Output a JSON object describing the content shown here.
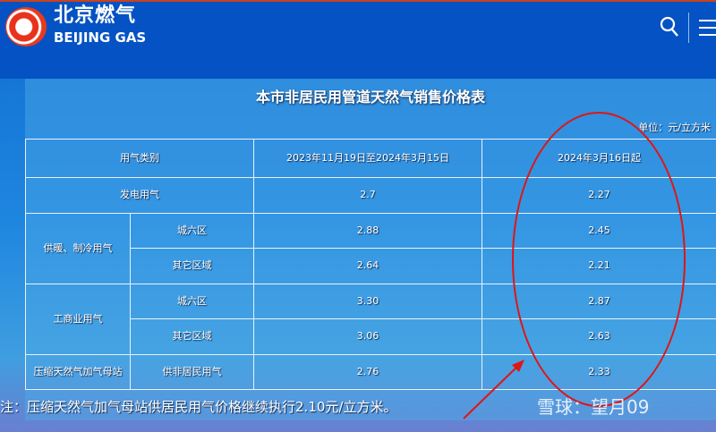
{
  "header": {
    "brand_cn": "北京燃气",
    "brand_en": "BEIJING GAS",
    "icons": [
      "logo-icon",
      "search-icon",
      "menu-icon"
    ]
  },
  "panel": {
    "title": "本市非居民用管道天然气销售价格表",
    "unit": "单位：元/立方米",
    "columns": [
      "用气类别",
      "2023年11月19日至2024年3月15日",
      "2024年3月16日起"
    ],
    "rows": [
      {
        "category": "发电用气",
        "sub": "",
        "old": "2.7",
        "new": "2.27"
      },
      {
        "category": "供暖、制冷用气",
        "sub": "城六区",
        "old": "2.88",
        "new": "2.45"
      },
      {
        "category": "",
        "sub": "其它区域",
        "old": "2.64",
        "new": "2.21"
      },
      {
        "category": "工商业用气",
        "sub": "城六区",
        "old": "3.30",
        "new": "2.87"
      },
      {
        "category": "",
        "sub": "其它区域",
        "old": "3.06",
        "new": "2.63"
      },
      {
        "category": "压缩天然气加气母站",
        "sub": "供非居民用气",
        "old": "2.76",
        "new": "2.33"
      }
    ],
    "note": "注：压缩天然气加气母站供居民用气价格继续执行2.10元/立方米。"
  },
  "watermark": "雪球：望月09",
  "colors": {
    "header": "#0452c3",
    "annotation": "#e01515"
  }
}
